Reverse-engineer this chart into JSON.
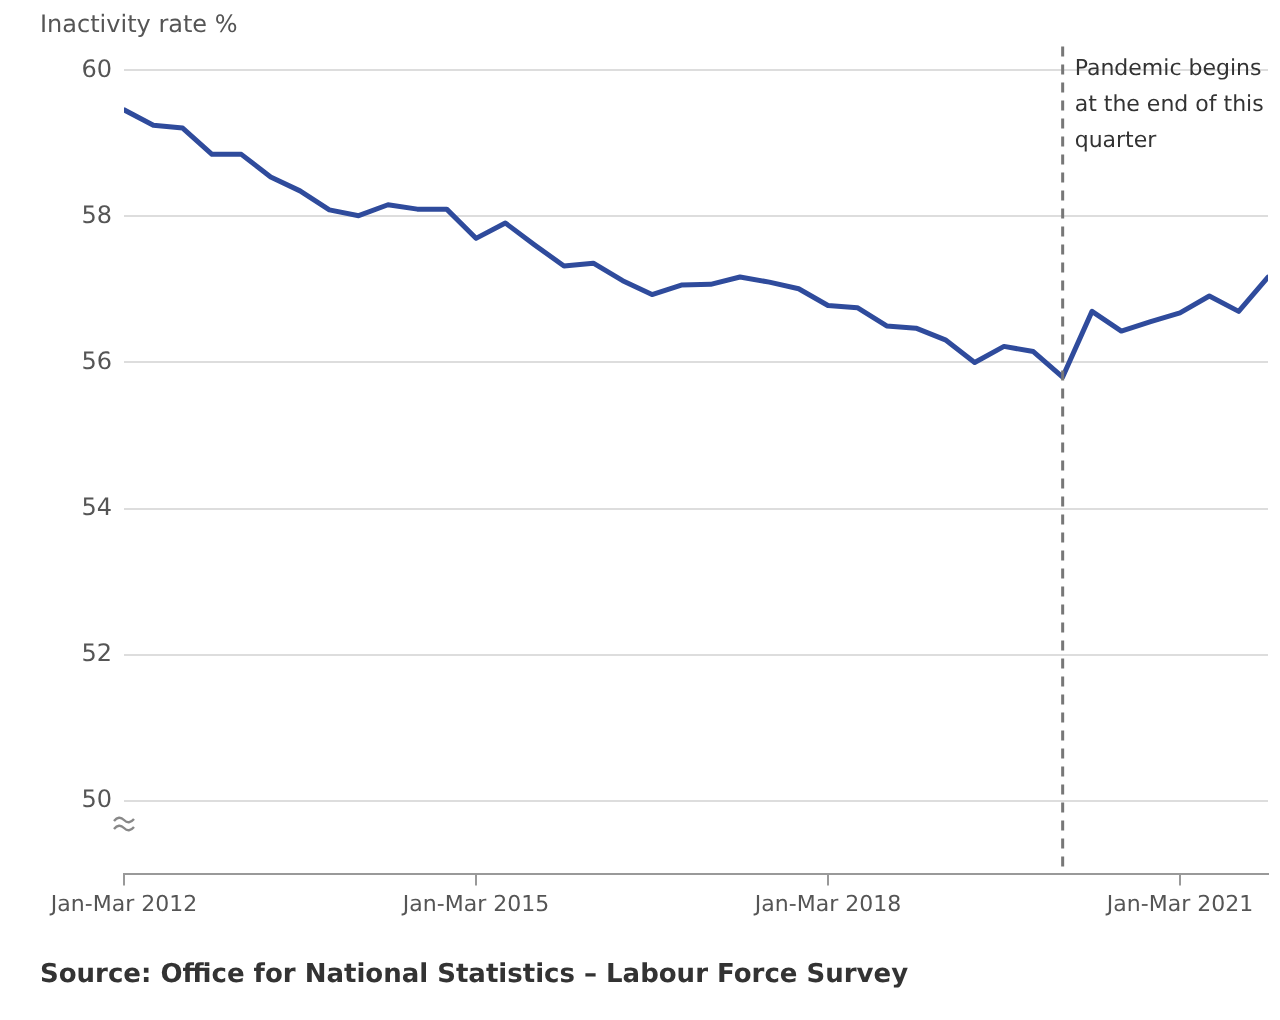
{
  "chart_data": {
    "type": "line",
    "ylabel": "Inactivity rate %",
    "x": [
      "2012-01",
      "2012-04",
      "2012-07",
      "2012-10",
      "2013-01",
      "2013-04",
      "2013-07",
      "2013-10",
      "2014-01",
      "2014-04",
      "2014-07",
      "2014-10",
      "2015-01",
      "2015-04",
      "2015-07",
      "2015-10",
      "2016-01",
      "2016-04",
      "2016-07",
      "2016-10",
      "2017-01",
      "2017-04",
      "2017-07",
      "2017-10",
      "2018-01",
      "2018-04",
      "2018-07",
      "2018-10",
      "2019-01",
      "2019-04",
      "2019-07",
      "2019-10",
      "2020-01",
      "2020-04",
      "2020-07",
      "2020-10",
      "2021-01",
      "2021-04",
      "2021-07",
      "2021-10"
    ],
    "series": [
      {
        "color": "#2f4b9c",
        "values": [
          59.46,
          59.25,
          59.21,
          58.85,
          58.85,
          58.54,
          58.35,
          58.09,
          58.01,
          58.16,
          58.1,
          58.1,
          57.7,
          57.91,
          57.61,
          57.32,
          57.36,
          57.12,
          56.93,
          57.06,
          57.07,
          57.17,
          57.1,
          57.01,
          56.78,
          56.75,
          56.5,
          56.47,
          56.31,
          56.0,
          56.22,
          56.15,
          55.8,
          56.7,
          56.43,
          56.56,
          56.68,
          56.91,
          56.7,
          57.17
        ]
      }
    ],
    "xlim": [
      "2012-01",
      "2021-10"
    ],
    "xticks": [
      {
        "value": "2012-01",
        "label": "Jan-Mar 2012"
      },
      {
        "value": "2015-01",
        "label": "Jan-Mar 2015"
      },
      {
        "value": "2018-01",
        "label": "Jan-Mar 2018"
      },
      {
        "value": "2021-01",
        "label": "Jan-Mar 2021"
      }
    ],
    "ylim": [
      49,
      60
    ],
    "yticks": [
      50,
      52,
      54,
      56,
      58,
      60
    ],
    "grid": "y",
    "legend": false,
    "marker": "none",
    "line_style": "solid",
    "ref_lines": [
      {
        "axis": "x",
        "value": "2020-01",
        "label": "Pandemic begins at the end of this quarter",
        "color": "#777777",
        "line_style": "dashed"
      }
    ],
    "annotations": [
      "Source: Office for National Statistics – Labour Force Survey"
    ]
  }
}
